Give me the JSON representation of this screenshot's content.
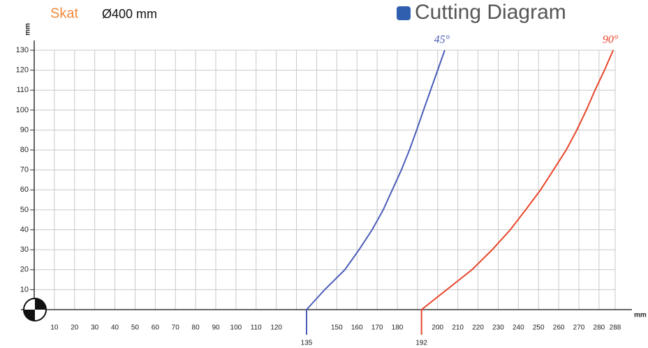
{
  "chart_data": {
    "type": "line",
    "brand": "Skat",
    "subtitle": "Ø400 mm",
    "title": "Cutting Diagram",
    "xlabel": "mm",
    "ylabel": "mm",
    "xlim": [
      0,
      288
    ],
    "ylim": [
      0,
      130
    ],
    "xticks": [
      10,
      20,
      30,
      40,
      50,
      60,
      70,
      80,
      90,
      100,
      110,
      120,
      {
        "value": 130,
        "label": null
      },
      {
        "value": 140,
        "label": null
      },
      150,
      160,
      170,
      180,
      {
        "value": 190,
        "label": null
      },
      200,
      210,
      220,
      230,
      240,
      250,
      260,
      270,
      280,
      288
    ],
    "yticks": [
      10,
      20,
      30,
      40,
      50,
      60,
      70,
      80,
      90,
      100,
      110,
      120,
      130
    ],
    "grid": true,
    "series": [
      {
        "name": "45°",
        "color": "#4a5cb8",
        "x": [
          135,
          144,
          154,
          161,
          167.5,
          173,
          177.5,
          182,
          186,
          189.6,
          193,
          196.5,
          200,
          203.5
        ],
        "values": [
          0,
          10,
          20,
          30,
          40,
          50,
          60,
          70,
          80,
          90,
          100,
          110,
          120,
          130
        ]
      },
      {
        "name": "90°",
        "color": "#e8452a",
        "x": [
          192,
          204.5,
          217,
          227,
          236,
          243.6,
          251,
          257.4,
          263.7,
          269,
          273.7,
          278,
          282.7,
          287
        ],
        "values": [
          0,
          10,
          20,
          30,
          40,
          50,
          60,
          70,
          80,
          90,
          100,
          110,
          120,
          130
        ]
      }
    ]
  }
}
